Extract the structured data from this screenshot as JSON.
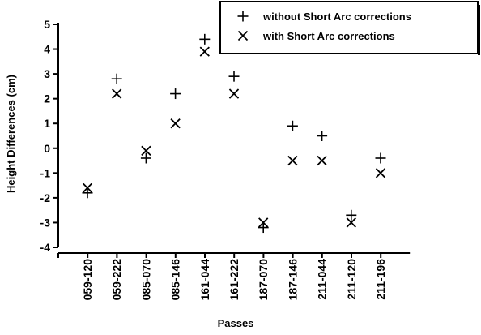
{
  "chart_data": {
    "type": "scatter",
    "title": "",
    "xlabel": "Passes",
    "ylabel": "Height Differences (cm)",
    "ylim": [
      -4,
      5
    ],
    "yticks": [
      -4,
      -3,
      -2,
      -1,
      0,
      1,
      2,
      3,
      4,
      5
    ],
    "ytick_labels": [
      "-4",
      "-3",
      "-2",
      "-1",
      "0",
      "1",
      "2",
      "3",
      "4",
      "5"
    ],
    "categories": [
      "059-120",
      "059-222",
      "085-070",
      "085-146",
      "161-044",
      "161-222",
      "187-070",
      "187-146",
      "211-044",
      "211-120",
      "211-196"
    ],
    "grid": false,
    "legend_position": "top-right",
    "series": [
      {
        "name": "without Short Arc corrections",
        "marker": "plus",
        "values": [
          -1.8,
          2.8,
          -0.4,
          2.2,
          4.4,
          2.9,
          -3.2,
          0.9,
          0.5,
          -2.7,
          -0.4
        ]
      },
      {
        "name": "with Short Arc corrections",
        "marker": "x",
        "values": [
          -1.6,
          2.2,
          -0.1,
          1.0,
          3.9,
          2.2,
          -3.0,
          -0.5,
          -0.5,
          -3.0,
          -1.0
        ]
      }
    ]
  }
}
